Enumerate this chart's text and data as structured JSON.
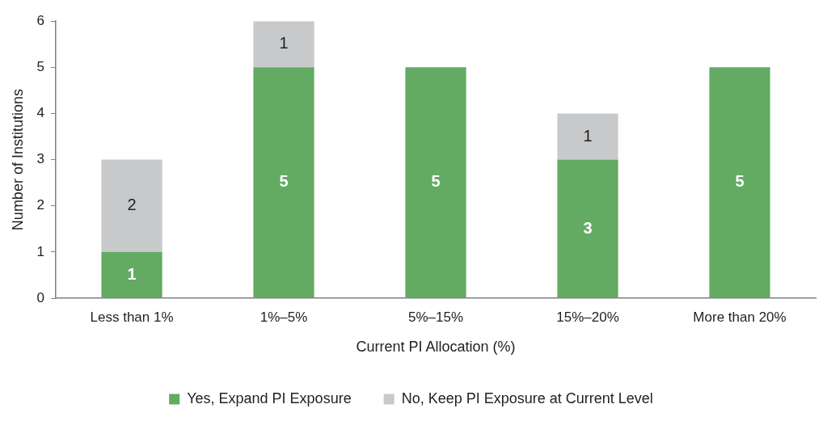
{
  "chart_data": {
    "type": "bar",
    "stacked": true,
    "xlabel": "Current PI Allocation (%)",
    "ylabel": "Number of Institutions",
    "categories": [
      "Less than 1%",
      "1%–5%",
      "5%–15%",
      "15%–20%",
      "More than 20%"
    ],
    "series": [
      {
        "name": "Yes, Expand PI Exposure",
        "color": "#63aa63",
        "values": [
          1,
          5,
          5,
          3,
          5
        ]
      },
      {
        "name": "No, Keep PI Exposure at Current Level",
        "color": "#c8c9cb",
        "values": [
          2,
          1,
          null,
          1,
          null
        ]
      }
    ],
    "ylim": [
      0,
      6
    ],
    "yticks": [
      0,
      1,
      2,
      3,
      4,
      5,
      6
    ],
    "grid": false,
    "legend": "bottom",
    "data_labels": true
  }
}
